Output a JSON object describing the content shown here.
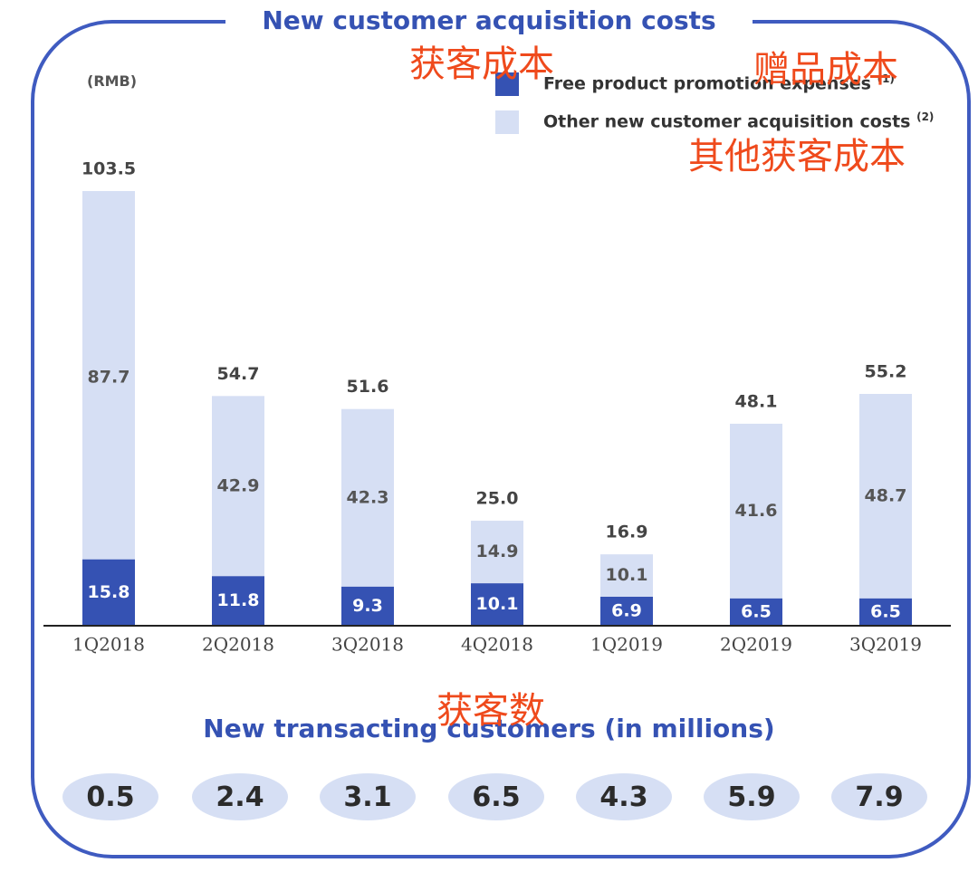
{
  "chart_data": {
    "type": "bar",
    "stacked": true,
    "title": "New customer acquisition costs",
    "unit": "(RMB)",
    "categories": [
      "1Q2018",
      "2Q2018",
      "3Q2018",
      "4Q2018",
      "1Q2019",
      "2Q2019",
      "3Q2019"
    ],
    "series": [
      {
        "name": "Free product promotion expenses",
        "footnote": "(1)",
        "color": "#3552b3",
        "values": [
          15.8,
          11.8,
          9.3,
          10.1,
          6.9,
          6.5,
          6.5
        ]
      },
      {
        "name": "Other new customer acquisition costs",
        "footnote": "(2)",
        "color": "#d6dff4",
        "values": [
          87.7,
          42.9,
          42.3,
          14.9,
          10.1,
          41.6,
          48.7
        ]
      }
    ],
    "totals": [
      "103.5",
      "54.7",
      "51.6",
      "25.0",
      "16.9",
      "48.1",
      "55.2"
    ],
    "series_labels": [
      [
        "15.8",
        "11.8",
        "9.3",
        "10.1",
        "6.9",
        "6.5",
        "6.5"
      ],
      [
        "87.7",
        "42.9",
        "42.3",
        "14.9",
        "10.1",
        "41.6",
        "48.7"
      ]
    ],
    "ylim": [
      0,
      103.5
    ],
    "grid": false,
    "legend": "top-right"
  },
  "customers": {
    "title": "New transacting customers (in millions)",
    "values": [
      "0.5",
      "2.4",
      "3.1",
      "6.5",
      "4.3",
      "5.9",
      "7.9"
    ]
  },
  "annotations": {
    "acquisition_cost": "获客成本",
    "free_product_cost": "赠品成本",
    "other_cost": "其他获客成本",
    "customer_count": "获客数"
  },
  "colors": {
    "accent": "#3552b3",
    "light": "#d6dff4",
    "annotation": "#ef4a1c"
  }
}
